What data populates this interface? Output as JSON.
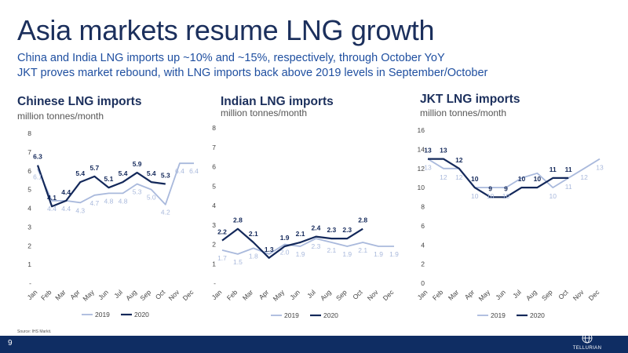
{
  "slide": {
    "title": "Asia markets resume LNG growth",
    "subtitle1": "China and India LNG imports up ~10% and ~15%, respectively, through October YoY",
    "subtitle2": "JKT proves market rebound, with LNG imports back above 2019 levels in September/October",
    "source": "Source:   IHS Markit.",
    "page_number": "9",
    "logo_text": "TELLURIAN"
  },
  "colors": {
    "y2019": "#a9b9dc",
    "y2020": "#13285a",
    "title": "#1b2f5c",
    "subtitle": "#1f4fa0",
    "footer": "#0f2d63"
  },
  "chart_data": [
    {
      "type": "line",
      "title": "Chinese LNG imports",
      "ylabel": "million tonnes/month",
      "categories": [
        "Jan",
        "Feb",
        "Mar",
        "Apr",
        "May",
        "Jun",
        "Jul",
        "Aug",
        "Sep",
        "Oct",
        "Nov",
        "Dec"
      ],
      "ylim": [
        0,
        8
      ],
      "yticks": [
        "-",
        "1",
        "2",
        "3",
        "4",
        "5",
        "6",
        "7",
        "8"
      ],
      "series": [
        {
          "name": "2019",
          "values": [
            6.1,
            4.4,
            4.4,
            4.3,
            4.7,
            4.8,
            4.8,
            5.3,
            5.0,
            4.2,
            6.4,
            6.4
          ],
          "labels": [
            "6.1",
            "4.4",
            "4.4",
            "4.3",
            "4.7",
            "4.8",
            "4.8",
            "5.3",
            "5.0",
            "4.2",
            "6.4",
            "6.4"
          ]
        },
        {
          "name": "2020",
          "values": [
            6.3,
            4.1,
            4.4,
            5.4,
            5.7,
            5.1,
            5.4,
            5.9,
            5.4,
            5.3,
            null,
            null
          ],
          "labels": [
            "6.3",
            "4.1",
            "4.4",
            "5.4",
            "5.7",
            "5.1",
            "5.4",
            "5.9",
            "5.4",
            "5.3",
            null,
            null
          ]
        }
      ],
      "legend": [
        "2019",
        "2020"
      ]
    },
    {
      "type": "line",
      "title": "Indian LNG imports",
      "ylabel": "million tonnes/month",
      "categories": [
        "Jan",
        "Feb",
        "Mar",
        "Apr",
        "May",
        "Jun",
        "Jul",
        "Aug",
        "Sep",
        "Oct",
        "Nov",
        "Dec"
      ],
      "ylim": [
        0,
        8
      ],
      "yticks": [
        "-",
        "1",
        "2",
        "3",
        "4",
        "5",
        "6",
        "7",
        "8"
      ],
      "series": [
        {
          "name": "2019",
          "values": [
            1.7,
            1.5,
            1.8,
            1.5,
            2.0,
            1.9,
            2.3,
            2.1,
            1.9,
            2.1,
            1.9,
            1.9
          ],
          "labels": [
            "1.7",
            "1.5",
            "1.8",
            null,
            "2.0",
            "1.9",
            "2.3",
            "2.1",
            "1.9",
            "2.1",
            "1.9",
            "1.9"
          ]
        },
        {
          "name": "2020",
          "values": [
            2.2,
            2.8,
            2.1,
            1.3,
            1.9,
            2.1,
            2.4,
            2.3,
            2.3,
            2.8,
            null,
            null
          ],
          "labels": [
            "2.2",
            "2.8",
            "2.1",
            "1.3",
            "1.9",
            "2.1",
            "2.4",
            "2.3",
            "2.3",
            "2.8",
            null,
            null
          ]
        }
      ],
      "legend": [
        "2019",
        "2020"
      ]
    },
    {
      "type": "line",
      "title": "JKT LNG imports",
      "ylabel": "million tonnes/month",
      "categories": [
        "Jan",
        "Feb",
        "Mar",
        "Apr",
        "May",
        "Jun",
        "Jul",
        "Aug",
        "Sep",
        "Oct",
        "Nov",
        "Dec"
      ],
      "ylim": [
        0,
        16
      ],
      "yticks": [
        "0",
        "2",
        "4",
        "6",
        "8",
        "10",
        "12",
        "14",
        "16"
      ],
      "series": [
        {
          "name": "2019",
          "values": [
            13,
            12,
            12,
            10,
            10,
            10,
            11,
            11.5,
            10,
            11,
            12,
            13
          ],
          "labels": [
            "13",
            "12",
            "12",
            "10",
            "10",
            "10",
            null,
            null,
            "10",
            "11",
            "12",
            "13"
          ]
        },
        {
          "name": "2020",
          "values": [
            13,
            13,
            12,
            10,
            9,
            9,
            10,
            10,
            11,
            11,
            null,
            null
          ],
          "labels": [
            "13",
            "13",
            "12",
            "10",
            "9",
            "9",
            "10",
            "10",
            "11",
            "11",
            null,
            null
          ]
        }
      ],
      "legend": [
        "2019",
        "2020"
      ]
    }
  ]
}
